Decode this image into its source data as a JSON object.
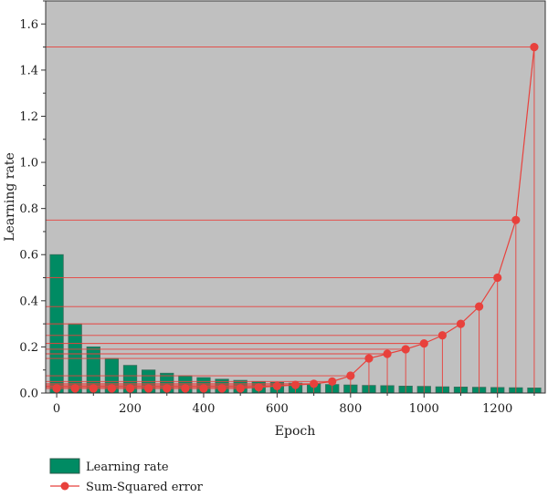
{
  "chart_data": {
    "type": "bar+line",
    "xlabel": "Epoch",
    "ylabel": "Learning rate",
    "xlim": [
      -30,
      1330
    ],
    "ylim": [
      0,
      1.7
    ],
    "xticks": [
      0,
      200,
      400,
      600,
      800,
      1000,
      1200
    ],
    "xtick_labels": [
      "0",
      "200",
      "400",
      "600",
      "800",
      "1000",
      "1200"
    ],
    "yticks": [
      0.0,
      0.2,
      0.4,
      0.6,
      0.8,
      1.0,
      1.2,
      1.4,
      1.6
    ],
    "ytick_labels": [
      "0.0",
      "0.2",
      "0.4",
      "0.6",
      "0.8",
      "1.0",
      "1.2",
      "1.4",
      "1.6"
    ],
    "grid": false,
    "background_color": "#c0c0c0",
    "legend_position": "bottom-left, below plot",
    "series": [
      {
        "name": "Learning rate",
        "kind": "bar",
        "color": "#008b63",
        "x": [
          0,
          50,
          100,
          150,
          200,
          250,
          300,
          350,
          400,
          450,
          500,
          550,
          600,
          650,
          700,
          750,
          800,
          850,
          900,
          950,
          1000,
          1050,
          1100,
          1150,
          1200,
          1250,
          1300
        ],
        "values": [
          0.6,
          0.3,
          0.2,
          0.15,
          0.12,
          0.1,
          0.086,
          0.075,
          0.067,
          0.06,
          0.055,
          0.05,
          0.046,
          0.043,
          0.04,
          0.037,
          0.035,
          0.033,
          0.032,
          0.03,
          0.029,
          0.027,
          0.026,
          0.025,
          0.024,
          0.023,
          0.022
        ]
      },
      {
        "name": "Sum-Squared error",
        "kind": "line",
        "color": "#e8413c",
        "x": [
          0,
          50,
          100,
          150,
          200,
          250,
          300,
          350,
          400,
          450,
          500,
          550,
          600,
          650,
          700,
          750,
          800,
          850,
          900,
          950,
          1000,
          1050,
          1100,
          1150,
          1200,
          1250,
          1300
        ],
        "values": [
          0.02,
          0.02,
          0.02,
          0.02,
          0.02,
          0.02,
          0.02,
          0.02,
          0.02,
          0.02,
          0.02,
          0.025,
          0.03,
          0.035,
          0.04,
          0.05,
          0.075,
          0.15,
          0.17,
          0.19,
          0.215,
          0.25,
          0.3,
          0.375,
          0.5,
          0.75,
          1.5
        ]
      }
    ],
    "reference_lines": "horizontal lines from the y-axis to each error point and vertical drop lines from each error point to the x-axis"
  }
}
